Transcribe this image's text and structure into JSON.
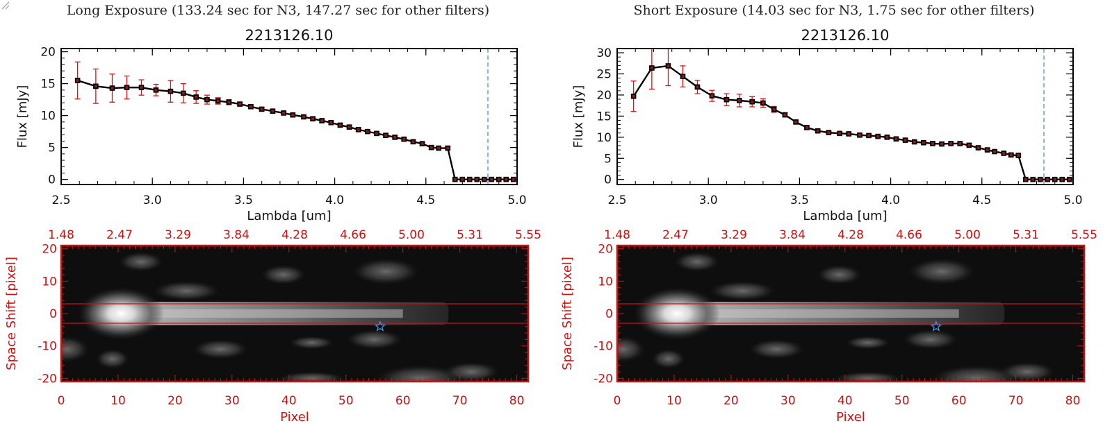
{
  "panels": [
    {
      "exposure_title": "Long Exposure (133.24 sec for N3, 147.27 sec for other filters)",
      "spectrum": {
        "title": "2213126.10",
        "xlabel": "Lambda [um]",
        "ylabel": "Flux [mJy]",
        "xlim": [
          2.5,
          5.0
        ],
        "ylim": [
          -0.8,
          20.5
        ],
        "xticks": [
          "2.5",
          "3.0",
          "3.5",
          "4.0",
          "4.5",
          "5.0"
        ],
        "yticks": [
          "0",
          "5",
          "10",
          "15",
          "20"
        ],
        "cutoff_wavelength": 4.84,
        "wavelength": [
          2.59,
          2.69,
          2.78,
          2.86,
          2.94,
          3.02,
          3.1,
          3.17,
          3.24,
          3.3,
          3.36,
          3.42,
          3.48,
          3.54,
          3.6,
          3.66,
          3.72,
          3.77,
          3.83,
          3.88,
          3.93,
          3.98,
          4.03,
          4.08,
          4.13,
          4.18,
          4.23,
          4.28,
          4.33,
          4.38,
          4.43,
          4.48,
          4.53,
          4.57,
          4.62,
          4.66,
          4.7,
          4.74,
          4.78,
          4.82,
          4.86,
          4.9,
          4.94,
          4.98
        ],
        "flux": [
          15.5,
          14.6,
          14.3,
          14.4,
          14.4,
          14.0,
          13.8,
          13.5,
          12.9,
          12.5,
          12.3,
          12.1,
          11.8,
          11.4,
          11.0,
          10.7,
          10.4,
          10.1,
          9.8,
          9.5,
          9.2,
          8.9,
          8.5,
          8.2,
          7.8,
          7.5,
          7.2,
          6.9,
          6.6,
          6.3,
          5.9,
          5.6,
          5.0,
          4.9,
          4.9,
          0,
          0,
          0,
          0,
          0,
          0,
          0,
          0,
          0
        ],
        "flux_error": [
          2.9,
          2.7,
          2.2,
          1.8,
          1.2,
          0.9,
          1.7,
          1.5,
          1.0,
          0.7,
          0.5,
          0.4,
          0.3,
          0.3,
          0.3,
          0.3,
          0.3,
          0.3,
          0.3,
          0.3,
          0.3,
          0.3,
          0.3,
          0.3,
          0.3,
          0.3,
          0.3,
          0.3,
          0.3,
          0.3,
          0.3,
          0.3,
          0.3,
          0.3,
          0.3,
          0,
          0,
          0,
          0,
          0,
          0,
          0,
          0,
          0
        ]
      },
      "image2d": {
        "ylabel": "Space Shift [pixel]",
        "xlabel": "Pixel",
        "xlim": [
          0,
          82
        ],
        "ylim": [
          -21,
          21
        ],
        "xticks": [
          "0",
          "10",
          "20",
          "30",
          "40",
          "50",
          "60",
          "70",
          "80"
        ],
        "yticks": [
          "20",
          "10",
          "0",
          "-10",
          "-20"
        ],
        "top_axis_ticks": [
          "1.48",
          "2.47",
          "3.29",
          "3.84",
          "4.28",
          "4.66",
          "5.00",
          "5.31",
          "5.55"
        ],
        "aperture_lines": [
          3,
          -3
        ],
        "source_marker": {
          "pixel": 56,
          "shift": -4
        }
      }
    },
    {
      "exposure_title": "Short Exposure (14.03 sec for N3, 1.75 sec for other filters)",
      "spectrum": {
        "title": "2213126.10",
        "xlabel": "Lambda [um]",
        "ylabel": "Flux [mJy]",
        "xlim": [
          2.5,
          5.0
        ],
        "ylim": [
          -1.2,
          31
        ],
        "xticks": [
          "2.5",
          "3.0",
          "3.5",
          "4.0",
          "4.5",
          "5.0"
        ],
        "yticks": [
          "0",
          "5",
          "10",
          "15",
          "20",
          "25",
          "30"
        ],
        "cutoff_wavelength": 4.84,
        "wavelength": [
          2.59,
          2.69,
          2.78,
          2.86,
          2.94,
          3.02,
          3.1,
          3.17,
          3.24,
          3.3,
          3.36,
          3.42,
          3.48,
          3.54,
          3.6,
          3.66,
          3.72,
          3.77,
          3.83,
          3.88,
          3.93,
          3.98,
          4.03,
          4.08,
          4.13,
          4.18,
          4.23,
          4.28,
          4.33,
          4.38,
          4.43,
          4.48,
          4.53,
          4.57,
          4.62,
          4.66,
          4.7,
          4.74,
          4.78,
          4.82,
          4.86,
          4.9,
          4.94,
          4.98
        ],
        "flux": [
          19.7,
          26.4,
          26.9,
          24.4,
          21.9,
          19.8,
          18.9,
          18.7,
          18.4,
          18.1,
          16.6,
          15.3,
          13.6,
          12.3,
          11.5,
          11.1,
          10.9,
          10.8,
          10.5,
          10.4,
          10.2,
          10.0,
          9.6,
          9.3,
          8.9,
          8.7,
          8.5,
          8.4,
          8.5,
          8.5,
          8.1,
          7.5,
          7.0,
          6.6,
          6.2,
          5.8,
          5.7,
          0,
          0,
          0,
          0,
          0,
          0,
          0
        ],
        "flux_error": [
          3.6,
          5.0,
          4.7,
          2.5,
          1.6,
          1.3,
          1.4,
          1.5,
          1.2,
          1.0,
          0.7,
          0.5,
          0.4,
          0.4,
          0.3,
          0.3,
          0.3,
          0.3,
          0.3,
          0.3,
          0.3,
          0.3,
          0.3,
          0.3,
          0.3,
          0.3,
          0.3,
          0.3,
          0.3,
          0.3,
          0.3,
          0.3,
          0.3,
          0.3,
          0.3,
          0.3,
          0.3,
          0,
          0,
          0,
          0,
          0,
          0,
          0
        ]
      },
      "image2d": {
        "ylabel": "Space Shift [pixel]",
        "xlabel": "Pixel",
        "xlim": [
          0,
          82
        ],
        "ylim": [
          -21,
          21
        ],
        "xticks": [
          "0",
          "10",
          "20",
          "30",
          "40",
          "50",
          "60",
          "70",
          "80"
        ],
        "yticks": [
          "20",
          "10",
          "0",
          "-10",
          "-20"
        ],
        "top_axis_ticks": [
          "1.48",
          "2.47",
          "3.29",
          "3.84",
          "4.28",
          "4.66",
          "5.00",
          "5.31",
          "5.55"
        ],
        "aperture_lines": [
          3,
          -3
        ],
        "source_marker": {
          "pixel": 56,
          "shift": -4
        }
      }
    }
  ],
  "colors": {
    "data_line": "#000000",
    "error_bar": "#dd1111",
    "image_axis": "#cc1111",
    "cutoff_line": "#4a90e2",
    "star_marker": "#4a8fe0",
    "aperture_line": "#cc1111"
  },
  "chart_data": [
    {
      "type": "line",
      "title": "2213126.10",
      "xlabel": "Lambda [um]",
      "ylabel": "Flux [mJy]",
      "xlim": [
        2.5,
        5.0
      ],
      "ylim": [
        -0.8,
        20.5
      ],
      "series": [
        {
          "x": [
            2.59,
            2.69,
            2.78,
            2.86,
            2.94,
            3.02,
            3.1,
            3.17,
            3.24,
            3.3,
            3.36,
            3.42,
            3.48,
            3.54,
            3.6,
            3.66,
            3.72,
            3.77,
            3.83,
            3.88,
            3.93,
            3.98,
            4.03,
            4.08,
            4.13,
            4.18,
            4.23,
            4.28,
            4.33,
            4.38,
            4.43,
            4.48,
            4.53,
            4.57,
            4.62,
            4.66,
            4.7,
            4.74,
            4.78,
            4.82,
            4.86,
            4.9,
            4.94,
            4.98
          ],
          "values": [
            15.5,
            14.6,
            14.3,
            14.4,
            14.4,
            14.0,
            13.8,
            13.5,
            12.9,
            12.5,
            12.3,
            12.1,
            11.8,
            11.4,
            11.0,
            10.7,
            10.4,
            10.1,
            9.8,
            9.5,
            9.2,
            8.9,
            8.5,
            8.2,
            7.8,
            7.5,
            7.2,
            6.9,
            6.6,
            6.3,
            5.9,
            5.6,
            5.0,
            4.9,
            4.9,
            0,
            0,
            0,
            0,
            0,
            0,
            0,
            0,
            0
          ]
        }
      ]
    },
    {
      "type": "line",
      "title": "2213126.10",
      "xlabel": "Lambda [um]",
      "ylabel": "Flux [mJy]",
      "xlim": [
        2.5,
        5.0
      ],
      "ylim": [
        -1.2,
        31
      ],
      "series": [
        {
          "x": [
            2.59,
            2.69,
            2.78,
            2.86,
            2.94,
            3.02,
            3.1,
            3.17,
            3.24,
            3.3,
            3.36,
            3.42,
            3.48,
            3.54,
            3.6,
            3.66,
            3.72,
            3.77,
            3.83,
            3.88,
            3.93,
            3.98,
            4.03,
            4.08,
            4.13,
            4.18,
            4.23,
            4.28,
            4.33,
            4.38,
            4.43,
            4.48,
            4.53,
            4.57,
            4.62,
            4.66,
            4.7,
            4.74,
            4.78,
            4.82,
            4.86,
            4.9,
            4.94,
            4.98
          ],
          "values": [
            19.7,
            26.4,
            26.9,
            24.4,
            21.9,
            19.8,
            18.9,
            18.7,
            18.4,
            18.1,
            16.6,
            15.3,
            13.6,
            12.3,
            11.5,
            11.1,
            10.9,
            10.8,
            10.5,
            10.4,
            10.2,
            10.0,
            9.6,
            9.3,
            8.9,
            8.7,
            8.5,
            8.4,
            8.5,
            8.5,
            8.1,
            7.5,
            7.0,
            6.6,
            6.2,
            5.8,
            5.7,
            0,
            0,
            0,
            0,
            0,
            0,
            0
          ]
        }
      ]
    },
    {
      "type": "heatmap",
      "ylabel": "Space Shift [pixel]",
      "xlabel": "Pixel",
      "xlim": [
        0,
        82
      ],
      "ylim": [
        -21,
        21
      ]
    },
    {
      "type": "heatmap",
      "ylabel": "Space Shift [pixel]",
      "xlabel": "Pixel",
      "xlim": [
        0,
        82
      ],
      "ylim": [
        -21,
        21
      ]
    }
  ]
}
